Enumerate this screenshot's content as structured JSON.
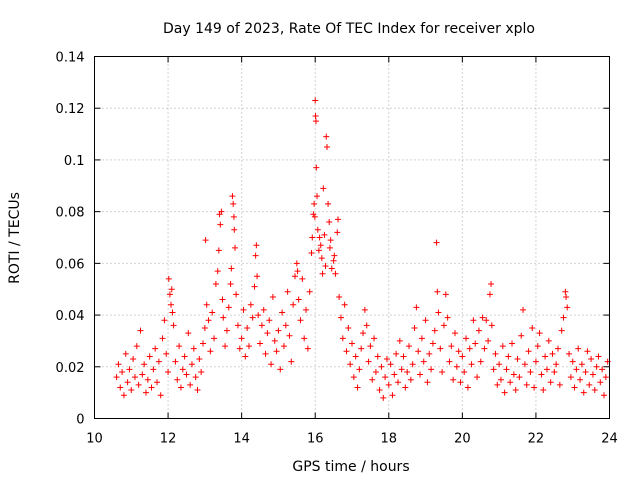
{
  "chart_data": {
    "type": "scatter",
    "title": "Day 149 of 2023, Rate Of TEC Index for receiver xplo",
    "xlabel": "GPS time / hours",
    "ylabel": "ROTI / TECUs",
    "xlim": [
      10,
      24
    ],
    "ylim": [
      0,
      0.14
    ],
    "x_ticks": [
      10,
      12,
      14,
      16,
      18,
      20,
      22,
      24
    ],
    "x_tick_labels": [
      "10",
      "12",
      "14",
      "16",
      "18",
      "20",
      "22",
      "24"
    ],
    "y_ticks": [
      0,
      0.02,
      0.04,
      0.06,
      0.08,
      0.1,
      0.12,
      0.14
    ],
    "y_tick_labels": [
      "0",
      "0.02",
      "0.04",
      "0.06",
      "0.08",
      "0.1",
      "0.12",
      "0.14"
    ],
    "grid": true,
    "marker": "+",
    "color": "#ff0000",
    "series": [
      {
        "name": "ROTI",
        "points": [
          [
            10.6,
            0.016
          ],
          [
            10.65,
            0.021
          ],
          [
            10.7,
            0.012
          ],
          [
            10.75,
            0.018
          ],
          [
            10.8,
            0.009
          ],
          [
            10.85,
            0.025
          ],
          [
            10.9,
            0.014
          ],
          [
            10.95,
            0.019
          ],
          [
            11.0,
            0.011
          ],
          [
            11.05,
            0.023
          ],
          [
            11.1,
            0.016
          ],
          [
            11.15,
            0.028
          ],
          [
            11.2,
            0.013
          ],
          [
            11.25,
            0.034
          ],
          [
            11.3,
            0.017
          ],
          [
            11.35,
            0.021
          ],
          [
            11.4,
            0.01
          ],
          [
            11.45,
            0.015
          ],
          [
            11.5,
            0.024
          ],
          [
            11.55,
            0.012
          ],
          [
            11.6,
            0.019
          ],
          [
            11.65,
            0.027
          ],
          [
            11.7,
            0.014
          ],
          [
            11.75,
            0.022
          ],
          [
            11.8,
            0.009
          ],
          [
            11.85,
            0.031
          ],
          [
            11.9,
            0.038
          ],
          [
            11.95,
            0.025
          ],
          [
            12.0,
            0.018
          ],
          [
            12.02,
            0.054
          ],
          [
            12.05,
            0.048
          ],
          [
            12.08,
            0.044
          ],
          [
            12.1,
            0.05
          ],
          [
            12.12,
            0.041
          ],
          [
            12.15,
            0.036
          ],
          [
            12.2,
            0.022
          ],
          [
            12.25,
            0.015
          ],
          [
            12.3,
            0.028
          ],
          [
            12.35,
            0.012
          ],
          [
            12.4,
            0.019
          ],
          [
            12.45,
            0.024
          ],
          [
            12.5,
            0.017
          ],
          [
            12.55,
            0.033
          ],
          [
            12.6,
            0.013
          ],
          [
            12.65,
            0.021
          ],
          [
            12.7,
            0.027
          ],
          [
            12.75,
            0.016
          ],
          [
            12.8,
            0.011
          ],
          [
            12.85,
            0.023
          ],
          [
            12.9,
            0.018
          ],
          [
            12.95,
            0.029
          ],
          [
            13.0,
            0.035
          ],
          [
            13.02,
            0.069
          ],
          [
            13.05,
            0.044
          ],
          [
            13.1,
            0.038
          ],
          [
            13.15,
            0.026
          ],
          [
            13.2,
            0.041
          ],
          [
            13.25,
            0.031
          ],
          [
            13.3,
            0.052
          ],
          [
            13.35,
            0.057
          ],
          [
            13.38,
            0.065
          ],
          [
            13.4,
            0.079
          ],
          [
            13.42,
            0.075
          ],
          [
            13.45,
            0.08
          ],
          [
            13.48,
            0.046
          ],
          [
            13.5,
            0.039
          ],
          [
            13.55,
            0.028
          ],
          [
            13.6,
            0.034
          ],
          [
            13.65,
            0.043
          ],
          [
            13.7,
            0.052
          ],
          [
            13.72,
            0.058
          ],
          [
            13.75,
            0.086
          ],
          [
            13.77,
            0.083
          ],
          [
            13.79,
            0.078
          ],
          [
            13.8,
            0.073
          ],
          [
            13.82,
            0.066
          ],
          [
            13.85,
            0.048
          ],
          [
            13.9,
            0.036
          ],
          [
            13.95,
            0.027
          ],
          [
            14.0,
            0.031
          ],
          [
            14.05,
            0.042
          ],
          [
            14.1,
            0.024
          ],
          [
            14.15,
            0.035
          ],
          [
            14.2,
            0.028
          ],
          [
            14.25,
            0.044
          ],
          [
            14.3,
            0.039
          ],
          [
            14.35,
            0.051
          ],
          [
            14.38,
            0.063
          ],
          [
            14.4,
            0.067
          ],
          [
            14.42,
            0.055
          ],
          [
            14.45,
            0.04
          ],
          [
            14.5,
            0.029
          ],
          [
            14.55,
            0.036
          ],
          [
            14.6,
            0.042
          ],
          [
            14.65,
            0.025
          ],
          [
            14.7,
            0.033
          ],
          [
            14.75,
            0.038
          ],
          [
            14.8,
            0.021
          ],
          [
            14.85,
            0.047
          ],
          [
            14.9,
            0.03
          ],
          [
            14.95,
            0.026
          ],
          [
            15.0,
            0.034
          ],
          [
            15.05,
            0.019
          ],
          [
            15.1,
            0.041
          ],
          [
            15.15,
            0.028
          ],
          [
            15.2,
            0.036
          ],
          [
            15.25,
            0.049
          ],
          [
            15.3,
            0.032
          ],
          [
            15.35,
            0.022
          ],
          [
            15.4,
            0.044
          ],
          [
            15.45,
            0.055
          ],
          [
            15.5,
            0.06
          ],
          [
            15.52,
            0.057
          ],
          [
            15.55,
            0.046
          ],
          [
            15.6,
            0.038
          ],
          [
            15.65,
            0.054
          ],
          [
            15.7,
            0.031
          ],
          [
            15.75,
            0.042
          ],
          [
            15.8,
            0.027
          ],
          [
            15.85,
            0.049
          ],
          [
            15.9,
            0.064
          ],
          [
            15.92,
            0.07
          ],
          [
            15.95,
            0.079
          ],
          [
            15.97,
            0.083
          ],
          [
            15.99,
            0.078
          ],
          [
            16.0,
            0.123
          ],
          [
            16.01,
            0.117
          ],
          [
            16.02,
            0.115
          ],
          [
            16.03,
            0.097
          ],
          [
            16.05,
            0.086
          ],
          [
            16.07,
            0.073
          ],
          [
            16.1,
            0.065
          ],
          [
            16.12,
            0.07
          ],
          [
            16.15,
            0.067
          ],
          [
            16.18,
            0.062
          ],
          [
            16.2,
            0.056
          ],
          [
            16.22,
            0.089
          ],
          [
            16.25,
            0.071
          ],
          [
            16.28,
            0.059
          ],
          [
            16.3,
            0.109
          ],
          [
            16.32,
            0.105
          ],
          [
            16.35,
            0.083
          ],
          [
            16.38,
            0.076
          ],
          [
            16.4,
            0.066
          ],
          [
            16.42,
            0.069
          ],
          [
            16.45,
            0.058
          ],
          [
            16.5,
            0.061
          ],
          [
            16.52,
            0.063
          ],
          [
            16.55,
            0.056
          ],
          [
            16.6,
            0.072
          ],
          [
            16.62,
            0.077
          ],
          [
            16.65,
            0.047
          ],
          [
            16.7,
            0.039
          ],
          [
            16.75,
            0.031
          ],
          [
            16.8,
            0.044
          ],
          [
            16.85,
            0.026
          ],
          [
            16.9,
            0.035
          ],
          [
            16.95,
            0.021
          ],
          [
            17.0,
            0.029
          ],
          [
            17.05,
            0.016
          ],
          [
            17.1,
            0.024
          ],
          [
            17.15,
            0.012
          ],
          [
            17.2,
            0.019
          ],
          [
            17.25,
            0.027
          ],
          [
            17.3,
            0.033
          ],
          [
            17.35,
            0.042
          ],
          [
            17.4,
            0.036
          ],
          [
            17.45,
            0.022
          ],
          [
            17.5,
            0.028
          ],
          [
            17.55,
            0.015
          ],
          [
            17.6,
            0.031
          ],
          [
            17.65,
            0.018
          ],
          [
            17.7,
            0.024
          ],
          [
            17.75,
            0.011
          ],
          [
            17.8,
            0.02
          ],
          [
            17.85,
            0.008
          ],
          [
            17.9,
            0.016
          ],
          [
            17.95,
            0.023
          ],
          [
            18.0,
            0.013
          ],
          [
            18.05,
            0.021
          ],
          [
            18.1,
            0.009
          ],
          [
            18.15,
            0.017
          ],
          [
            18.2,
            0.025
          ],
          [
            18.25,
            0.014
          ],
          [
            18.3,
            0.03
          ],
          [
            18.35,
            0.019
          ],
          [
            18.4,
            0.024
          ],
          [
            18.45,
            0.012
          ],
          [
            18.5,
            0.018
          ],
          [
            18.55,
            0.028
          ],
          [
            18.6,
            0.015
          ],
          [
            18.65,
            0.021
          ],
          [
            18.7,
            0.035
          ],
          [
            18.75,
            0.043
          ],
          [
            18.8,
            0.026
          ],
          [
            18.85,
            0.017
          ],
          [
            18.9,
            0.031
          ],
          [
            18.95,
            0.022
          ],
          [
            19.0,
            0.038
          ],
          [
            19.05,
            0.014
          ],
          [
            19.1,
            0.025
          ],
          [
            19.15,
            0.019
          ],
          [
            19.2,
            0.029
          ],
          [
            19.25,
            0.034
          ],
          [
            19.3,
            0.068
          ],
          [
            19.32,
            0.049
          ],
          [
            19.35,
            0.041
          ],
          [
            19.4,
            0.027
          ],
          [
            19.45,
            0.018
          ],
          [
            19.5,
            0.036
          ],
          [
            19.55,
            0.048
          ],
          [
            19.6,
            0.039
          ],
          [
            19.65,
            0.022
          ],
          [
            19.7,
            0.028
          ],
          [
            19.75,
            0.015
          ],
          [
            19.8,
            0.033
          ],
          [
            19.85,
            0.02
          ],
          [
            19.9,
            0.026
          ],
          [
            19.95,
            0.014
          ],
          [
            20.0,
            0.024
          ],
          [
            20.05,
            0.018
          ],
          [
            20.1,
            0.031
          ],
          [
            20.15,
            0.012
          ],
          [
            20.2,
            0.027
          ],
          [
            20.25,
            0.021
          ],
          [
            20.3,
            0.038
          ],
          [
            20.35,
            0.029
          ],
          [
            20.4,
            0.016
          ],
          [
            20.45,
            0.034
          ],
          [
            20.5,
            0.022
          ],
          [
            20.55,
            0.039
          ],
          [
            20.6,
            0.027
          ],
          [
            20.65,
            0.038
          ],
          [
            20.7,
            0.03
          ],
          [
            20.75,
            0.048
          ],
          [
            20.78,
            0.052
          ],
          [
            20.8,
            0.036
          ],
          [
            20.85,
            0.019
          ],
          [
            20.9,
            0.025
          ],
          [
            20.95,
            0.013
          ],
          [
            21.0,
            0.021
          ],
          [
            21.05,
            0.015
          ],
          [
            21.1,
            0.028
          ],
          [
            21.15,
            0.01
          ],
          [
            21.2,
            0.019
          ],
          [
            21.25,
            0.024
          ],
          [
            21.3,
            0.014
          ],
          [
            21.35,
            0.029
          ],
          [
            21.4,
            0.017
          ],
          [
            21.45,
            0.011
          ],
          [
            21.5,
            0.023
          ],
          [
            21.55,
            0.016
          ],
          [
            21.6,
            0.032
          ],
          [
            21.65,
            0.042
          ],
          [
            21.7,
            0.021
          ],
          [
            21.75,
            0.013
          ],
          [
            21.8,
            0.026
          ],
          [
            21.85,
            0.018
          ],
          [
            21.9,
            0.035
          ],
          [
            21.95,
            0.012
          ],
          [
            22.0,
            0.022
          ],
          [
            22.05,
            0.028
          ],
          [
            22.1,
            0.033
          ],
          [
            22.15,
            0.017
          ],
          [
            22.2,
            0.011
          ],
          [
            22.25,
            0.024
          ],
          [
            22.3,
            0.019
          ],
          [
            22.35,
            0.03
          ],
          [
            22.4,
            0.014
          ],
          [
            22.45,
            0.025
          ],
          [
            22.5,
            0.018
          ],
          [
            22.55,
            0.021
          ],
          [
            22.6,
            0.027
          ],
          [
            22.65,
            0.013
          ],
          [
            22.7,
            0.034
          ],
          [
            22.75,
            0.039
          ],
          [
            22.8,
            0.049
          ],
          [
            22.82,
            0.047
          ],
          [
            22.85,
            0.043
          ],
          [
            22.9,
            0.025
          ],
          [
            22.95,
            0.016
          ],
          [
            23.0,
            0.022
          ],
          [
            23.05,
            0.012
          ],
          [
            23.1,
            0.019
          ],
          [
            23.15,
            0.027
          ],
          [
            23.2,
            0.015
          ],
          [
            23.25,
            0.021
          ],
          [
            23.3,
            0.01
          ],
          [
            23.35,
            0.018
          ],
          [
            23.4,
            0.026
          ],
          [
            23.45,
            0.013
          ],
          [
            23.5,
            0.023
          ],
          [
            23.55,
            0.017
          ],
          [
            23.6,
            0.011
          ],
          [
            23.65,
            0.02
          ],
          [
            23.7,
            0.024
          ],
          [
            23.75,
            0.014
          ],
          [
            23.8,
            0.019
          ],
          [
            23.85,
            0.009
          ],
          [
            23.9,
            0.016
          ],
          [
            23.95,
            0.022
          ]
        ]
      }
    ]
  }
}
